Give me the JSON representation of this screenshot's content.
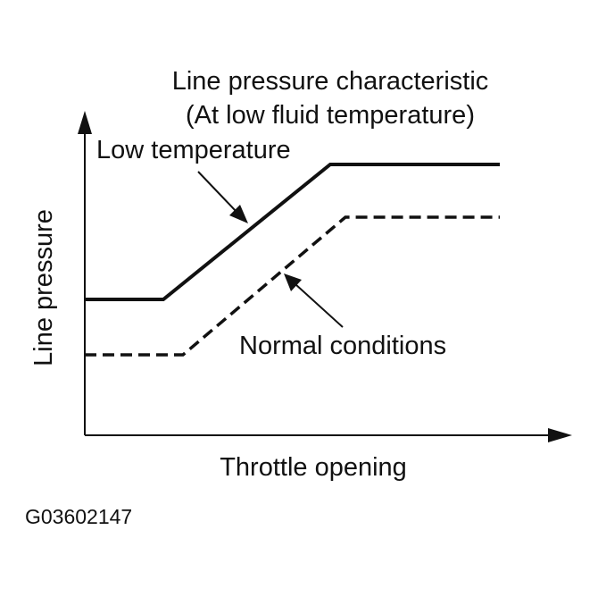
{
  "title": {
    "line1": "Line pressure characteristic",
    "line2": "(At low fluid temperature)"
  },
  "axes": {
    "ylabel": "Line pressure",
    "xlabel": "Throttle opening"
  },
  "curves": {
    "low_temperature": {
      "label": "Low temperature",
      "style": "solid"
    },
    "normal_conditions": {
      "label": "Normal conditions",
      "style": "dashed"
    }
  },
  "figure_code": "G03602147",
  "colors": {
    "ink": "#111111",
    "background": "#ffffff"
  }
}
